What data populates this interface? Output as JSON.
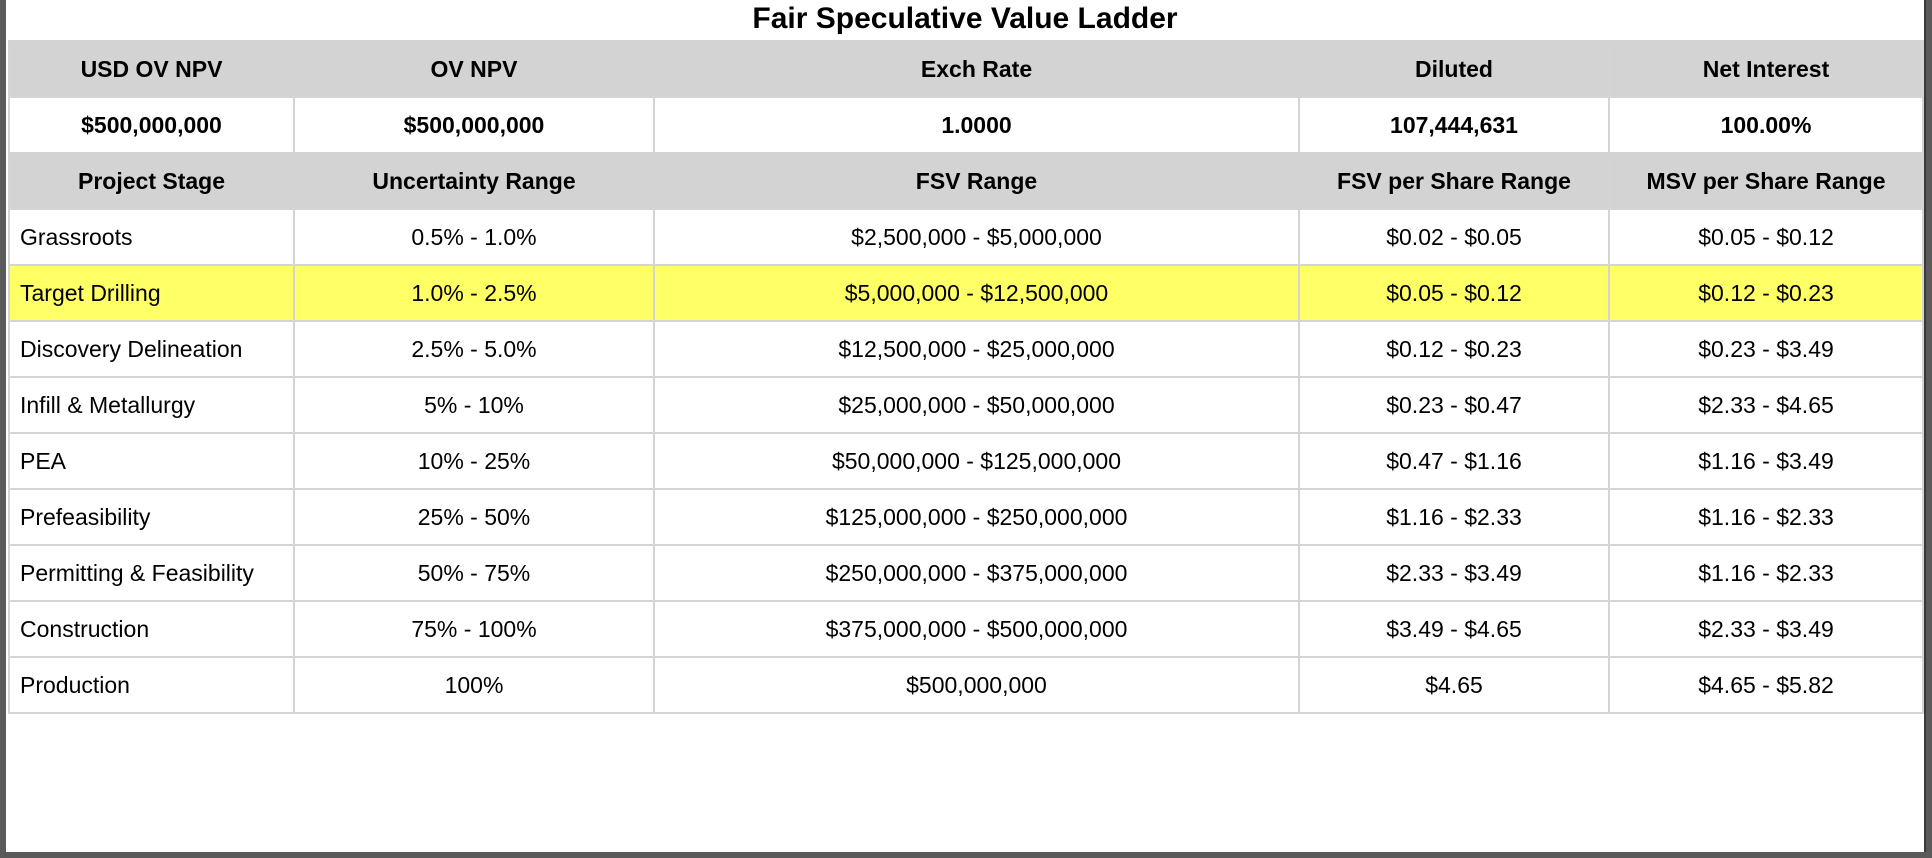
{
  "title": "Fair Speculative Value Ladder",
  "summary_headers": [
    "USD OV NPV",
    "OV NPV",
    "Exch Rate",
    "Diluted",
    "Net Interest"
  ],
  "summary_values": [
    "$500,000,000",
    "$500,000,000",
    "1.0000",
    "107,444,631",
    "100.00%"
  ],
  "columns": [
    "Project Stage",
    "Uncertainty Range",
    "FSV Range",
    "FSV per Share Range",
    "MSV per Share Range"
  ],
  "rows": [
    {
      "stage": "Grassroots",
      "uncertainty": "0.5% - 1.0%",
      "fsv": "$2,500,000 - $5,000,000",
      "fsv_share": "$0.02 - $0.05",
      "msv_share": "$0.05 - $0.12"
    },
    {
      "stage": "Target Drilling",
      "uncertainty": "1.0% - 2.5%",
      "fsv": "$5,000,000 - $12,500,000",
      "fsv_share": "$0.05 - $0.12",
      "msv_share": "$0.12 - $0.23"
    },
    {
      "stage": "Discovery Delineation",
      "uncertainty": "2.5% - 5.0%",
      "fsv": "$12,500,000 - $25,000,000",
      "fsv_share": "$0.12 - $0.23",
      "msv_share": "$0.23 - $3.49"
    },
    {
      "stage": "Infill & Metallurgy",
      "uncertainty": "5% - 10%",
      "fsv": "$25,000,000 - $50,000,000",
      "fsv_share": "$0.23 - $0.47",
      "msv_share": "$2.33 - $4.65"
    },
    {
      "stage": "PEA",
      "uncertainty": "10% - 25%",
      "fsv": "$50,000,000 - $125,000,000",
      "fsv_share": "$0.47 - $1.16",
      "msv_share": "$1.16 - $3.49"
    },
    {
      "stage": "Prefeasibility",
      "uncertainty": "25% - 50%",
      "fsv": "$125,000,000 - $250,000,000",
      "fsv_share": "$1.16 - $2.33",
      "msv_share": "$1.16 - $2.33"
    },
    {
      "stage": "Permitting & Feasibility",
      "uncertainty": "50% - 75%",
      "fsv": "$250,000,000 - $375,000,000",
      "fsv_share": "$2.33 - $3.49",
      "msv_share": "$1.16 - $2.33"
    },
    {
      "stage": "Construction",
      "uncertainty": "75% - 100%",
      "fsv": "$375,000,000 - $500,000,000",
      "fsv_share": "$3.49 - $4.65",
      "msv_share": "$2.33 - $3.49"
    },
    {
      "stage": "Production",
      "uncertainty": "100%",
      "fsv": "$500,000,000",
      "fsv_share": "$4.65",
      "msv_share": "$4.65 - $5.82"
    }
  ],
  "highlight_color": "#ffff66",
  "header_color": "#d3d3d3"
}
